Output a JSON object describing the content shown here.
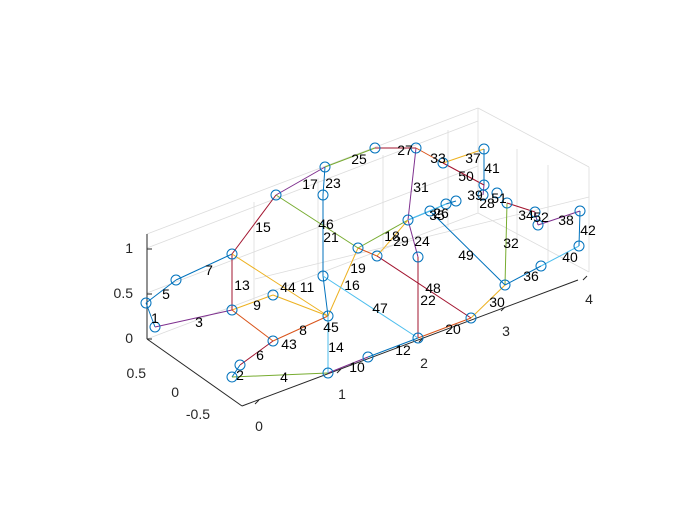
{
  "chart_data": {
    "type": "3d-truss-wireframe",
    "title": "",
    "xlabel": "",
    "ylabel": "",
    "zlabel": "",
    "x_ticks": [
      "0",
      "1",
      "2",
      "3",
      "4"
    ],
    "y_ticks": [
      "0.5",
      "0",
      "-0.5"
    ],
    "z_ticks": [
      "0",
      "0.5",
      "1"
    ],
    "grid": true,
    "node_marker": "circle",
    "colors": {
      "node": "#0072BD",
      "axis": "#262626",
      "grid": "#dcdcdc",
      "palette": [
        "#0072BD",
        "#D95319",
        "#EDB120",
        "#7E2F8E",
        "#77AC30",
        "#4DBEEE",
        "#A2142F"
      ]
    },
    "element_labels": [
      "1",
      "2",
      "3",
      "4",
      "5",
      "6",
      "7",
      "8",
      "9",
      "10",
      "11",
      "12",
      "13",
      "14",
      "15",
      "16",
      "17",
      "18",
      "19",
      "20",
      "21",
      "22",
      "23",
      "24",
      "25",
      "26",
      "27",
      "28",
      "29",
      "30",
      "31",
      "32",
      "33",
      "34",
      "35",
      "36",
      "37",
      "38",
      "39",
      "40",
      "41",
      "42",
      "43",
      "44",
      "45",
      "46",
      "47",
      "48",
      "49",
      "50",
      "51",
      "52"
    ]
  }
}
